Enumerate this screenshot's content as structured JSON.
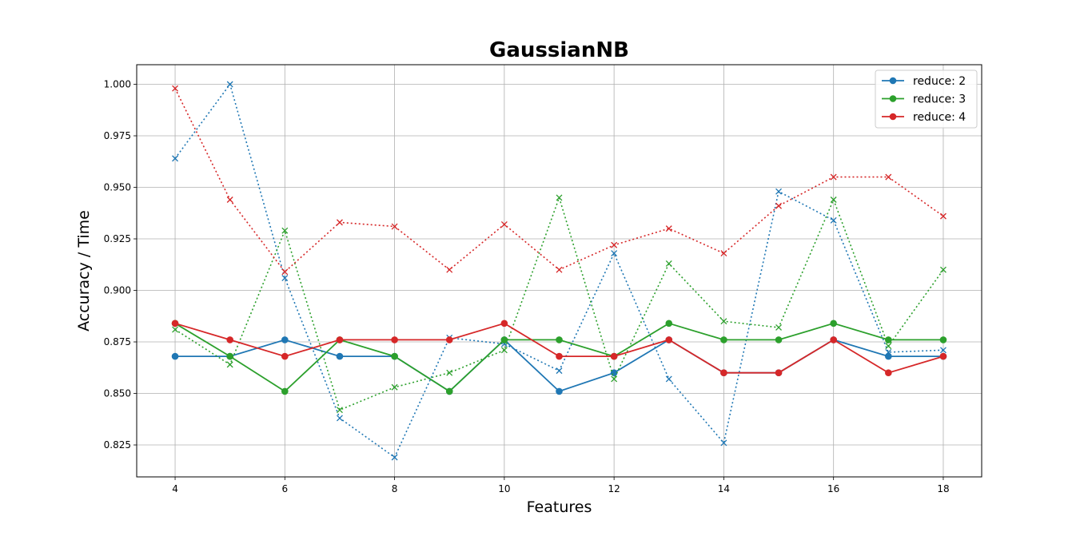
{
  "chart_data": {
    "type": "line",
    "title": "GaussianNB",
    "xlabel": "Features",
    "ylabel": "Accuracy / Time",
    "xlim": [
      3.3,
      18.7
    ],
    "ylim": [
      0.8095,
      1.0095
    ],
    "x_ticks": [
      4,
      6,
      8,
      10,
      12,
      14,
      16,
      18
    ],
    "x_tick_labels": [
      "4",
      "6",
      "8",
      "10",
      "12",
      "14",
      "16",
      "18"
    ],
    "y_ticks": [
      0.825,
      0.85,
      0.875,
      0.9,
      0.925,
      0.95,
      0.975,
      1.0
    ],
    "y_tick_labels": [
      "0.825",
      "0.850",
      "0.875",
      "0.900",
      "0.925",
      "0.950",
      "0.975",
      "1.000"
    ],
    "grid": true,
    "legend_position": "top-right",
    "x": [
      4,
      5,
      6,
      7,
      8,
      9,
      10,
      11,
      12,
      13,
      14,
      15,
      16,
      17,
      18
    ],
    "series": [
      {
        "name": "reduce: 2",
        "color": "#1f77b4",
        "accuracy": [
          0.868,
          0.868,
          0.876,
          0.868,
          0.868,
          0.851,
          0.876,
          0.851,
          0.86,
          0.876,
          0.86,
          0.86,
          0.876,
          0.868,
          0.868
        ],
        "time": [
          0.964,
          1.0,
          0.906,
          0.838,
          0.819,
          0.877,
          0.874,
          0.861,
          0.918,
          0.857,
          0.826,
          0.948,
          0.934,
          0.87,
          0.871
        ]
      },
      {
        "name": "reduce: 3",
        "color": "#2ca02c",
        "accuracy": [
          0.884,
          0.868,
          0.851,
          0.876,
          0.868,
          0.851,
          0.876,
          0.876,
          0.868,
          0.884,
          0.876,
          0.876,
          0.884,
          0.876,
          0.876
        ],
        "time": [
          0.881,
          0.864,
          0.929,
          0.842,
          0.853,
          0.86,
          0.871,
          0.945,
          0.857,
          0.913,
          0.885,
          0.882,
          0.944,
          0.873,
          0.91
        ]
      },
      {
        "name": "reduce: 4",
        "color": "#d62728",
        "accuracy": [
          0.884,
          0.876,
          0.868,
          0.876,
          0.876,
          0.876,
          0.884,
          0.868,
          0.868,
          0.876,
          0.86,
          0.86,
          0.876,
          0.86,
          0.868
        ],
        "time": [
          0.998,
          0.944,
          0.909,
          0.933,
          0.931,
          0.91,
          0.932,
          0.91,
          0.922,
          0.93,
          0.918,
          0.941,
          0.955,
          0.955,
          0.936
        ]
      }
    ]
  }
}
